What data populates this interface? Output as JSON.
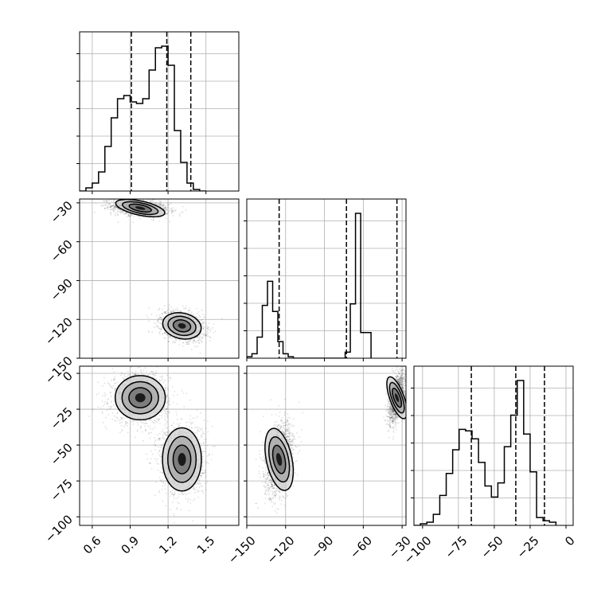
{
  "chart_data": {
    "type": "corner",
    "grid": true,
    "parameters": [
      {
        "index": 0,
        "range": [
          0.5,
          1.76
        ],
        "ticks": [
          0.6,
          0.9,
          1.2,
          1.5
        ],
        "tick_labels": [
          "0.6",
          "0.9",
          "1.2",
          "1.5"
        ],
        "quantiles": [
          0.91,
          1.19,
          1.38
        ]
      },
      {
        "index": 1,
        "range": [
          -150,
          -27
        ],
        "ticks": [
          -150,
          -120,
          -90,
          -60,
          -30
        ],
        "tick_labels": [
          "−150",
          "−120",
          "−90",
          "−60",
          "−30"
        ],
        "quantiles": [
          -125,
          -73,
          -34
        ]
      },
      {
        "index": 2,
        "range": [
          -106,
          5
        ],
        "ticks": [
          -100,
          -75,
          -50,
          -25,
          0
        ],
        "tick_labels": [
          "−100",
          "−75",
          "−50",
          "−25",
          "0"
        ],
        "quantiles": [
          -66,
          -35,
          -15
        ]
      }
    ],
    "histograms": [
      {
        "param": 0,
        "bin_start": 0.5,
        "bin_width": 0.05,
        "counts": [
          0,
          0.02,
          0.05,
          0.12,
          0.28,
          0.46,
          0.58,
          0.6,
          0.56,
          0.55,
          0.58,
          0.76,
          0.9,
          0.91,
          0.79,
          0.38,
          0.18,
          0.05,
          0.01,
          0
        ]
      },
      {
        "param": 1,
        "bin_start": -150,
        "bin_width": 4,
        "counts": [
          0.01,
          0.03,
          0.14,
          0.35,
          0.51,
          0.31,
          0.11,
          0.03,
          0.01,
          0,
          0,
          0,
          0,
          0,
          0,
          0,
          0,
          0,
          0,
          0.04,
          0.36,
          0.96,
          0.17,
          0.17
        ]
      },
      {
        "param": 2,
        "bin_start": -106,
        "bin_width": 4.5,
        "counts": [
          0,
          0.01,
          0.02,
          0.07,
          0.19,
          0.33,
          0.48,
          0.61,
          0.6,
          0.55,
          0.4,
          0.25,
          0.18,
          0.27,
          0.5,
          0.7,
          0.92,
          0.58,
          0.34,
          0.05,
          0.03,
          0.02
        ]
      }
    ],
    "clusters": [
      {
        "name": "",
        "centers": [
          0.98,
          -34,
          -17
        ],
        "spreads": [
          0.09,
          2.5,
          7
        ],
        "corr": [
          -0.3,
          0,
          0.5
        ]
      },
      {
        "name": "",
        "centers": [
          1.31,
          -125,
          -60
        ],
        "spreads": [
          0.07,
          4.5,
          10
        ],
        "corr": [
          -0.3,
          0,
          0.3
        ]
      }
    ],
    "contour_levels": [
      1.0,
      1.6,
      2.2
    ],
    "points_per_cluster": 1500
  }
}
